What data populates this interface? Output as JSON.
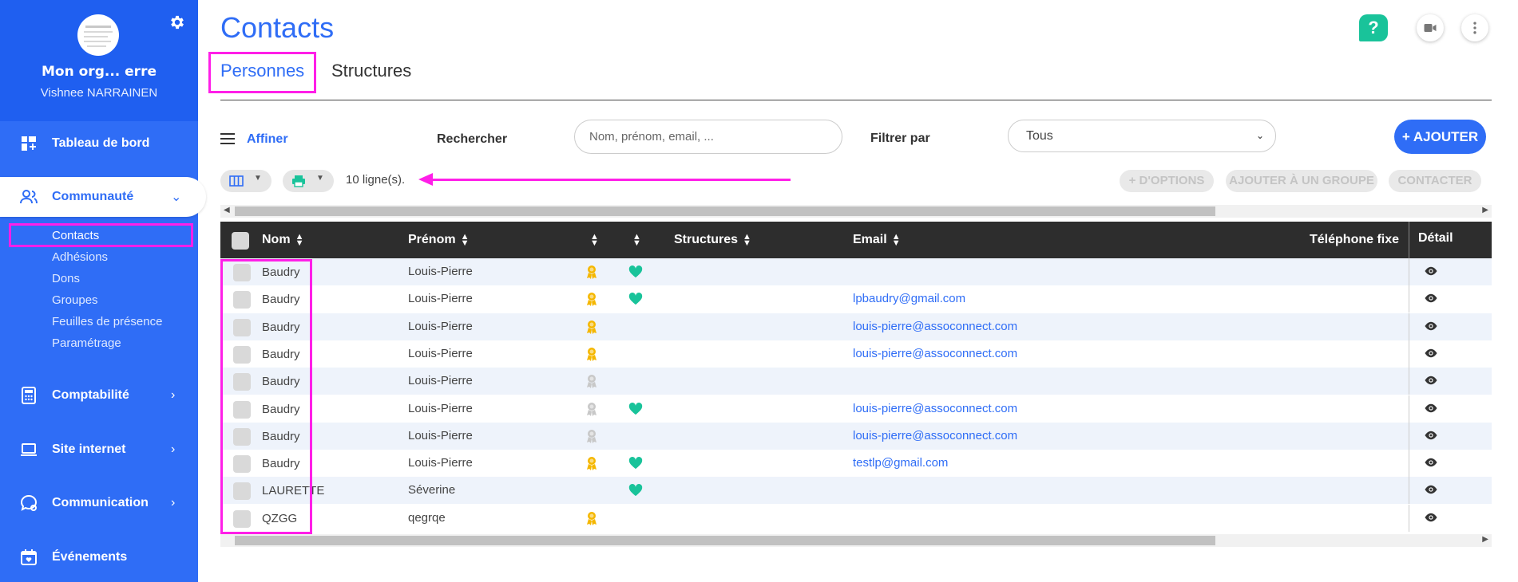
{
  "sidebar": {
    "org_name": "Mon org... erre",
    "user_name": "Vishnee NARRAINEN",
    "nav": [
      {
        "label": "Tableau de bord",
        "icon": "dashboard-icon"
      },
      {
        "label": "Communauté",
        "icon": "users-icon",
        "expanded": true
      },
      {
        "label": "Comptabilité",
        "icon": "calculator-icon"
      },
      {
        "label": "Site internet",
        "icon": "laptop-icon"
      },
      {
        "label": "Communication",
        "icon": "chat-icon"
      },
      {
        "label": "Événements",
        "icon": "calendar-icon"
      }
    ],
    "community_sub": [
      "Contacts",
      "Adhésions",
      "Dons",
      "Groupes",
      "Feuilles de présence",
      "Paramétrage"
    ],
    "active_sub": "Contacts"
  },
  "page": {
    "title": "Contacts",
    "help_label": "?"
  },
  "tabs": [
    "Personnes",
    "Structures"
  ],
  "toolbar": {
    "affiner": "Affiner",
    "rechercher": "Rechercher",
    "search_placeholder": "Nom, prénom, email, ...",
    "filtrer_par": "Filtrer par",
    "filter_value": "Tous",
    "add_label": "+ AJOUTER",
    "row_count": "10 ligne(s).",
    "options_label": "+ D'OPTIONS",
    "add_group_label": "AJOUTER À UN GROUPE",
    "contact_label": "CONTACTER"
  },
  "table": {
    "columns": {
      "nom": "Nom",
      "prenom": "Prénom",
      "structures": "Structures",
      "email": "Email",
      "telephone": "Téléphone fixe",
      "detail": "Détail"
    },
    "rows": [
      {
        "nom": "Baudry",
        "prenom": "Louis-Pierre",
        "badge": "gold",
        "heart": true,
        "email": ""
      },
      {
        "nom": "Baudry",
        "prenom": "Louis-Pierre",
        "badge": "gold",
        "heart": true,
        "email": "lpbaudry@gmail.com"
      },
      {
        "nom": "Baudry",
        "prenom": "Louis-Pierre",
        "badge": "gold",
        "heart": false,
        "email": "louis-pierre@assoconnect.com"
      },
      {
        "nom": "Baudry",
        "prenom": "Louis-Pierre",
        "badge": "gold",
        "heart": false,
        "email": "louis-pierre@assoconnect.com"
      },
      {
        "nom": "Baudry",
        "prenom": "Louis-Pierre",
        "badge": "grey",
        "heart": false,
        "email": ""
      },
      {
        "nom": "Baudry",
        "prenom": "Louis-Pierre",
        "badge": "grey",
        "heart": true,
        "email": "louis-pierre@assoconnect.com"
      },
      {
        "nom": "Baudry",
        "prenom": "Louis-Pierre",
        "badge": "grey",
        "heart": false,
        "email": "louis-pierre@assoconnect.com"
      },
      {
        "nom": "Baudry",
        "prenom": "Louis-Pierre",
        "badge": "gold",
        "heart": true,
        "email": "testlp@gmail.com"
      },
      {
        "nom": "LAURETTE",
        "prenom": "Séverine",
        "badge": "none",
        "heart": true,
        "email": ""
      },
      {
        "nom": "QZGG",
        "prenom": "qegrqe",
        "badge": "gold",
        "heart": false,
        "email": ""
      }
    ]
  },
  "colors": {
    "primary": "#2f6df6",
    "highlight": "#ff1fe8",
    "heart": "#19c39a",
    "badge_gold": "#f5b700",
    "badge_grey": "#c8c8c8"
  }
}
